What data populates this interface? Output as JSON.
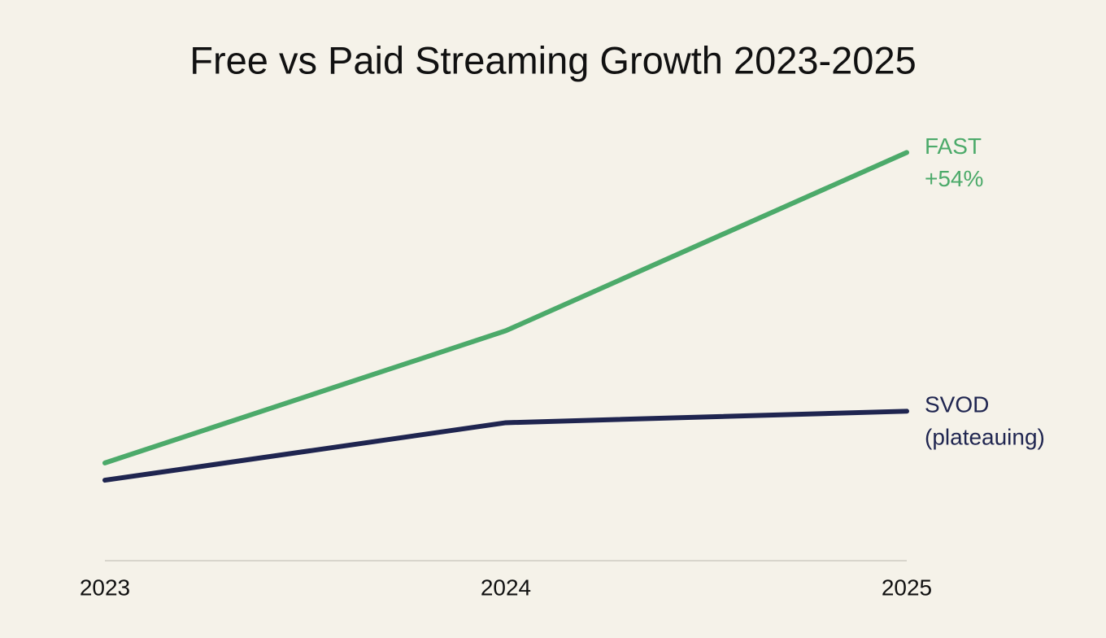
{
  "chart_data": {
    "type": "line",
    "title": "Free vs Paid Streaming Growth 2023-2025",
    "categories": [
      "2023",
      "2024",
      "2025"
    ],
    "series": [
      {
        "name": "FAST",
        "annotation": "+54%",
        "color": "#4caa6a",
        "values": [
          100,
          123,
          154
        ]
      },
      {
        "name": "SVOD",
        "annotation": "(plateauing)",
        "color": "#1f2550",
        "values": [
          97,
          107,
          109
        ]
      }
    ],
    "ylim": [
      83,
      160
    ],
    "grid": false
  }
}
